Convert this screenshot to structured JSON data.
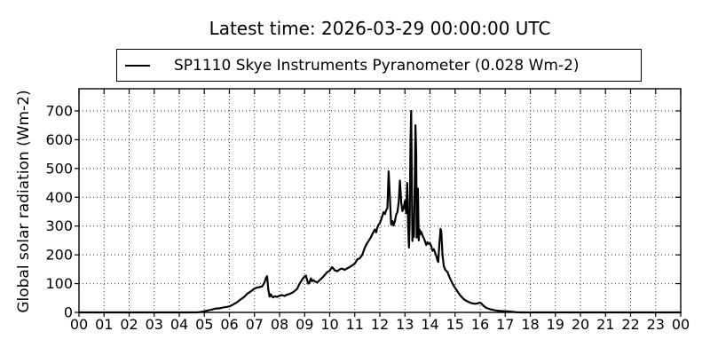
{
  "figure": {
    "background": "#ffffff",
    "title": "Latest time: 2026-03-29 00:00:00 UTC"
  },
  "legend": {
    "position": "top-center",
    "sample": "black-solid-line",
    "label": "SP1110 Skye Instruments Pyranometer (0.028 Wm-2)"
  },
  "chart_data": {
    "type": "line",
    "title": "Latest time: 2026-03-29 00:00:00 UTC",
    "xlabel": "",
    "ylabel": "Global solar radiation (Wm-2)",
    "xlim": [
      0,
      24
    ],
    "ylim": [
      0,
      777
    ],
    "grid": true,
    "grid_style": "dotted",
    "line_color": "#000000",
    "x_unit": "hour of day (UTC)",
    "y_unit": "Wm-2",
    "x_tick_hours": [
      0,
      1,
      2,
      3,
      4,
      5,
      6,
      7,
      8,
      9,
      10,
      11,
      12,
      13,
      14,
      15,
      16,
      17,
      18,
      19,
      20,
      21,
      22,
      23,
      24
    ],
    "x_tick_labels": [
      "00",
      "01",
      "02",
      "03",
      "04",
      "05",
      "06",
      "07",
      "08",
      "09",
      "10",
      "11",
      "12",
      "13",
      "14",
      "15",
      "16",
      "17",
      "18",
      "19",
      "20",
      "21",
      "22",
      "23",
      "00"
    ],
    "y_ticks": [
      0,
      100,
      200,
      300,
      400,
      500,
      600,
      700
    ],
    "series": [
      {
        "name": "SP1110 Skye Instruments Pyranometer (0.028 Wm-2)",
        "latest_value_wm2": 0.028,
        "points": [
          [
            0,
            0
          ],
          [
            0.5,
            0
          ],
          [
            1,
            0
          ],
          [
            1.5,
            0
          ],
          [
            2,
            0
          ],
          [
            2.5,
            0
          ],
          [
            3,
            0
          ],
          [
            3.5,
            0
          ],
          [
            4,
            0
          ],
          [
            4.4,
            0
          ],
          [
            4.7,
            0
          ],
          [
            4.8,
            1
          ],
          [
            4.9,
            2
          ],
          [
            5.0,
            4
          ],
          [
            5.1,
            6
          ],
          [
            5.2,
            8
          ],
          [
            5.3,
            10
          ],
          [
            5.4,
            12
          ],
          [
            5.5,
            14
          ],
          [
            5.6,
            14
          ],
          [
            5.7,
            16
          ],
          [
            5.8,
            18
          ],
          [
            5.9,
            19
          ],
          [
            6.0,
            21
          ],
          [
            6.1,
            25
          ],
          [
            6.2,
            30
          ],
          [
            6.3,
            35
          ],
          [
            6.4,
            42
          ],
          [
            6.5,
            48
          ],
          [
            6.6,
            55
          ],
          [
            6.7,
            64
          ],
          [
            6.8,
            70
          ],
          [
            6.9,
            76
          ],
          [
            7.0,
            83
          ],
          [
            7.1,
            86
          ],
          [
            7.2,
            88
          ],
          [
            7.3,
            90
          ],
          [
            7.35,
            96
          ],
          [
            7.4,
            104
          ],
          [
            7.45,
            118
          ],
          [
            7.5,
            126
          ],
          [
            7.55,
            80
          ],
          [
            7.6,
            55
          ],
          [
            7.65,
            63
          ],
          [
            7.7,
            55
          ],
          [
            7.75,
            52
          ],
          [
            7.8,
            56
          ],
          [
            7.9,
            54
          ],
          [
            8.0,
            58
          ],
          [
            8.1,
            60
          ],
          [
            8.2,
            57
          ],
          [
            8.3,
            62
          ],
          [
            8.4,
            64
          ],
          [
            8.5,
            68
          ],
          [
            8.6,
            74
          ],
          [
            8.7,
            82
          ],
          [
            8.8,
            100
          ],
          [
            8.9,
            114
          ],
          [
            9.0,
            125
          ],
          [
            9.05,
            128
          ],
          [
            9.1,
            112
          ],
          [
            9.15,
            100
          ],
          [
            9.2,
            105
          ],
          [
            9.25,
            118
          ],
          [
            9.3,
            108
          ],
          [
            9.35,
            112
          ],
          [
            9.4,
            108
          ],
          [
            9.5,
            104
          ],
          [
            9.6,
            112
          ],
          [
            9.7,
            120
          ],
          [
            9.8,
            130
          ],
          [
            9.9,
            140
          ],
          [
            10.0,
            145
          ],
          [
            10.05,
            152
          ],
          [
            10.1,
            157
          ],
          [
            10.2,
            146
          ],
          [
            10.3,
            143
          ],
          [
            10.4,
            150
          ],
          [
            10.5,
            152
          ],
          [
            10.6,
            148
          ],
          [
            10.7,
            153
          ],
          [
            10.8,
            158
          ],
          [
            10.9,
            163
          ],
          [
            11.0,
            170
          ],
          [
            11.1,
            184
          ],
          [
            11.2,
            188
          ],
          [
            11.3,
            200
          ],
          [
            11.4,
            225
          ],
          [
            11.5,
            242
          ],
          [
            11.55,
            248
          ],
          [
            11.6,
            255
          ],
          [
            11.65,
            262
          ],
          [
            11.7,
            272
          ],
          [
            11.75,
            280
          ],
          [
            11.8,
            288
          ],
          [
            11.85,
            278
          ],
          [
            11.9,
            295
          ],
          [
            11.95,
            305
          ],
          [
            12.0,
            310
          ],
          [
            12.05,
            322
          ],
          [
            12.1,
            335
          ],
          [
            12.15,
            348
          ],
          [
            12.2,
            342
          ],
          [
            12.25,
            355
          ],
          [
            12.3,
            362
          ],
          [
            12.35,
            490
          ],
          [
            12.4,
            400
          ],
          [
            12.45,
            305
          ],
          [
            12.5,
            318
          ],
          [
            12.55,
            302
          ],
          [
            12.6,
            316
          ],
          [
            12.65,
            340
          ],
          [
            12.7,
            348
          ],
          [
            12.75,
            382
          ],
          [
            12.8,
            458
          ],
          [
            12.85,
            385
          ],
          [
            12.9,
            352
          ],
          [
            12.95,
            362
          ],
          [
            13.0,
            388
          ],
          [
            13.05,
            345
          ],
          [
            13.09,
            450
          ],
          [
            13.13,
            298
          ],
          [
            13.16,
            225
          ],
          [
            13.19,
            310
          ],
          [
            13.22,
            590
          ],
          [
            13.25,
            700
          ],
          [
            13.28,
            400
          ],
          [
            13.3,
            248
          ],
          [
            13.33,
            325
          ],
          [
            13.36,
            262
          ],
          [
            13.39,
            450
          ],
          [
            13.42,
            650
          ],
          [
            13.45,
            552
          ],
          [
            13.47,
            260
          ],
          [
            13.5,
            295
          ],
          [
            13.52,
            430
          ],
          [
            13.55,
            250
          ],
          [
            13.58,
            288
          ],
          [
            13.62,
            272
          ],
          [
            13.65,
            280
          ],
          [
            13.7,
            268
          ],
          [
            13.75,
            258
          ],
          [
            13.8,
            248
          ],
          [
            13.85,
            234
          ],
          [
            13.9,
            244
          ],
          [
            13.95,
            238
          ],
          [
            14.0,
            240
          ],
          [
            14.05,
            230
          ],
          [
            14.1,
            214
          ],
          [
            14.15,
            220
          ],
          [
            14.2,
            208
          ],
          [
            14.25,
            196
          ],
          [
            14.3,
            180
          ],
          [
            14.33,
            175
          ],
          [
            14.37,
            235
          ],
          [
            14.42,
            290
          ],
          [
            14.45,
            282
          ],
          [
            14.5,
            200
          ],
          [
            14.55,
            162
          ],
          [
            14.6,
            150
          ],
          [
            14.65,
            144
          ],
          [
            14.7,
            140
          ],
          [
            14.75,
            128
          ],
          [
            14.8,
            118
          ],
          [
            14.9,
            100
          ],
          [
            15.0,
            85
          ],
          [
            15.1,
            72
          ],
          [
            15.2,
            60
          ],
          [
            15.3,
            50
          ],
          [
            15.4,
            43
          ],
          [
            15.5,
            38
          ],
          [
            15.6,
            34
          ],
          [
            15.7,
            31
          ],
          [
            15.8,
            30
          ],
          [
            15.9,
            31
          ],
          [
            15.95,
            33
          ],
          [
            16.0,
            34
          ],
          [
            16.05,
            31
          ],
          [
            16.1,
            26
          ],
          [
            16.2,
            18
          ],
          [
            16.3,
            14
          ],
          [
            16.4,
            11
          ],
          [
            16.5,
            9
          ],
          [
            16.6,
            7
          ],
          [
            16.7,
            6
          ],
          [
            16.8,
            5
          ],
          [
            17.0,
            4
          ],
          [
            17.2,
            3
          ],
          [
            17.4,
            1
          ],
          [
            17.6,
            0
          ],
          [
            17.8,
            0
          ],
          [
            18.0,
            0
          ],
          [
            18.5,
            0
          ],
          [
            19.0,
            0
          ],
          [
            19.5,
            0
          ],
          [
            20.0,
            0
          ],
          [
            20.5,
            0
          ],
          [
            21.0,
            0
          ],
          [
            21.5,
            0
          ],
          [
            22.0,
            0
          ],
          [
            22.5,
            0
          ],
          [
            23.0,
            0
          ],
          [
            23.5,
            0
          ],
          [
            24.0,
            0
          ]
        ]
      }
    ]
  }
}
